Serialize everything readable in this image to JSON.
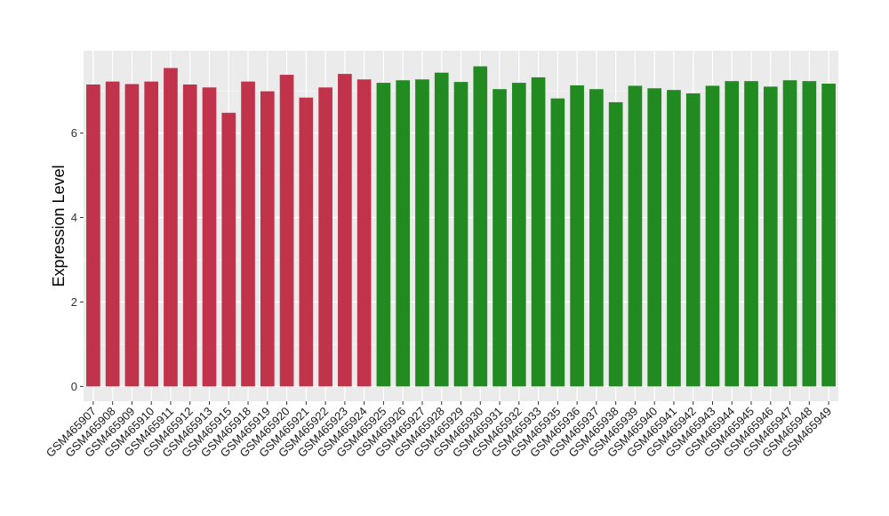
{
  "chart_data": {
    "type": "bar",
    "title": "",
    "xlabel": "",
    "ylabel": "Expression Level",
    "ylim": [
      -0.35,
      7.95
    ],
    "yticks": [
      0,
      2,
      4,
      6
    ],
    "grid": true,
    "legend": "none",
    "colors": {
      "group_a": "#c0334b",
      "group_b": "#218b21",
      "panel_bg": "#ebebeb",
      "grid": "#ffffff"
    },
    "categories": [
      "GSM465907",
      "GSM465908",
      "GSM465909",
      "GSM465910",
      "GSM465911",
      "GSM465912",
      "GSM465913",
      "GSM465915",
      "GSM465918",
      "GSM465919",
      "GSM465920",
      "GSM465921",
      "GSM465922",
      "GSM465923",
      "GSM465924",
      "GSM465925",
      "GSM465926",
      "GSM465927",
      "GSM465928",
      "GSM465929",
      "GSM465930",
      "GSM465931",
      "GSM465932",
      "GSM465933",
      "GSM465935",
      "GSM465936",
      "GSM465937",
      "GSM465938",
      "GSM465939",
      "GSM465940",
      "GSM465941",
      "GSM465942",
      "GSM465943",
      "GSM465944",
      "GSM465945",
      "GSM465946",
      "GSM465947",
      "GSM465948",
      "GSM465949"
    ],
    "values": [
      7.15,
      7.22,
      7.16,
      7.22,
      7.54,
      7.15,
      7.08,
      6.48,
      7.22,
      6.99,
      7.38,
      6.84,
      7.08,
      7.4,
      7.27,
      7.19,
      7.25,
      7.27,
      7.43,
      7.21,
      7.58,
      7.04,
      7.19,
      7.32,
      6.82,
      7.13,
      7.04,
      6.73,
      7.12,
      7.06,
      7.02,
      6.94,
      7.12,
      7.23,
      7.23,
      7.1,
      7.25,
      7.23,
      7.17
    ],
    "groups": [
      "a",
      "a",
      "a",
      "a",
      "a",
      "a",
      "a",
      "a",
      "a",
      "a",
      "a",
      "a",
      "a",
      "a",
      "a",
      "b",
      "b",
      "b",
      "b",
      "b",
      "b",
      "b",
      "b",
      "b",
      "b",
      "b",
      "b",
      "b",
      "b",
      "b",
      "b",
      "b",
      "b",
      "b",
      "b",
      "b",
      "b",
      "b",
      "b"
    ]
  }
}
